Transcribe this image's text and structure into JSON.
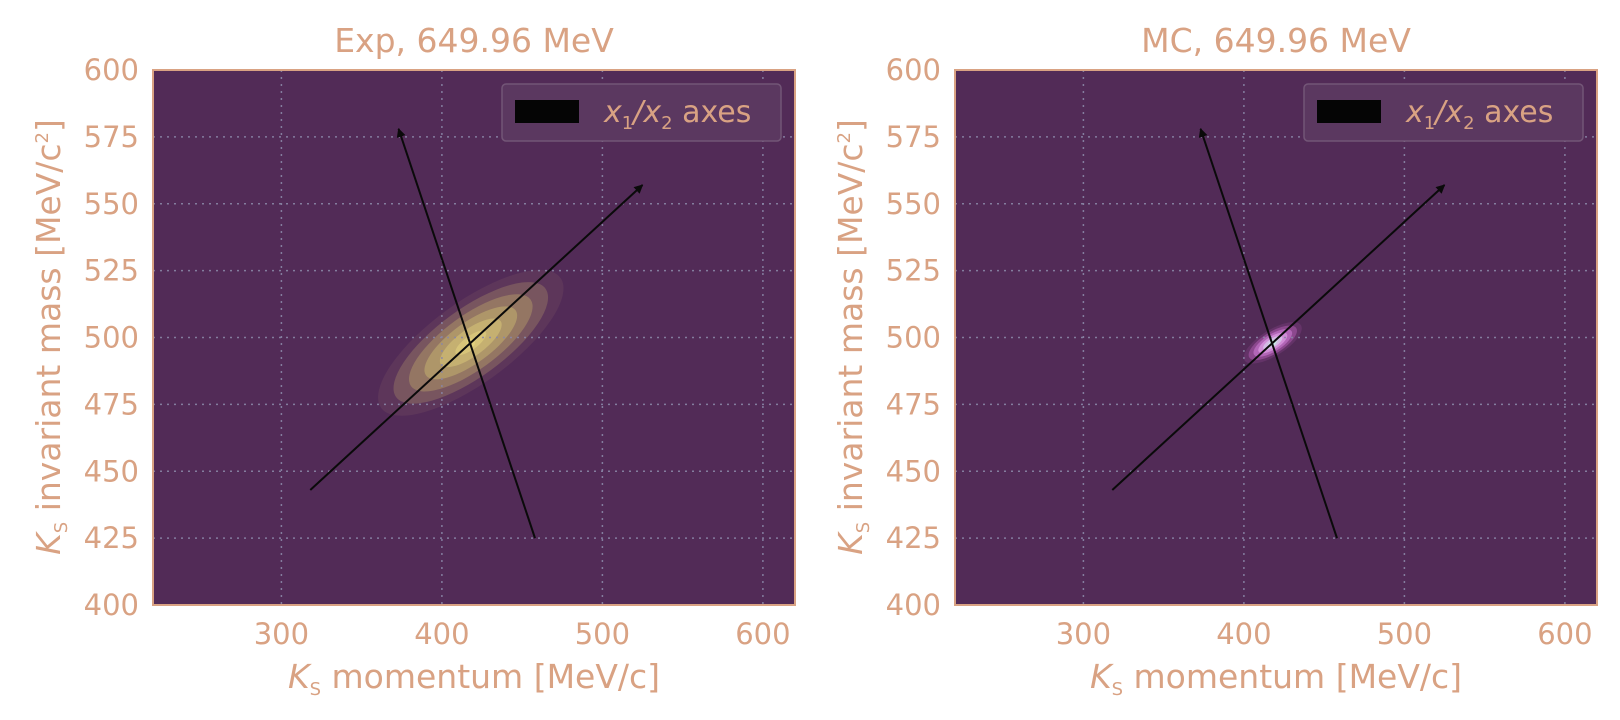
{
  "figure": {
    "text_color": "#D9A283",
    "background_color": "#ffffff",
    "plot_background": "#522B57",
    "grid_color": "#8A86A6",
    "arrow_color": "#0a0a0a"
  },
  "chart_data": [
    {
      "type": "heatmap",
      "title": "Exp, 649.96 MeV",
      "xlabel": {
        "sym": "K",
        "sub": "S",
        "rest": " momentum [MeV/c]"
      },
      "ylabel": {
        "sym": "K",
        "sub": "S",
        "rest": " invariant mass [MeV/c",
        "sup": "2",
        "end": "]"
      },
      "xlim": [
        220,
        620
      ],
      "ylim": [
        400,
        600
      ],
      "xticks": [
        300,
        400,
        500,
        600
      ],
      "yticks": [
        400,
        425,
        450,
        475,
        500,
        525,
        550,
        575,
        600
      ],
      "grid": true,
      "grid_style": "dotted",
      "legend": {
        "position": "top-right",
        "label_prefix": "x",
        "label_sub1": "1",
        "label_mid": "/x",
        "label_sub2": "2",
        "label_suffix": " axes"
      },
      "density": {
        "colormap": "yellow",
        "center": [
          418,
          498
        ],
        "spread_major": 60,
        "spread_minor": 22,
        "angle_deg": 36,
        "peak": "#E3D27E"
      },
      "arrows": [
        {
          "from": [
            318,
            443
          ],
          "to": [
            525,
            557
          ]
        },
        {
          "from": [
            458,
            425
          ],
          "to": [
            373,
            578
          ]
        }
      ]
    },
    {
      "type": "heatmap",
      "title": "MC, 649.96 MeV",
      "xlabel": {
        "sym": "K",
        "sub": "S",
        "rest": " momentum [MeV/c]"
      },
      "ylabel": {
        "sym": "K",
        "sub": "S",
        "rest": " invariant mass [MeV/c",
        "sup": "2",
        "end": "]"
      },
      "xlim": [
        220,
        620
      ],
      "ylim": [
        400,
        600
      ],
      "xticks": [
        300,
        400,
        500,
        600
      ],
      "yticks": [
        400,
        425,
        450,
        475,
        500,
        525,
        550,
        575,
        600
      ],
      "grid": true,
      "grid_style": "dotted",
      "legend": {
        "position": "top-right",
        "label_prefix": "x",
        "label_sub1": "1",
        "label_mid": "/x",
        "label_sub2": "2",
        "label_suffix": " axes"
      },
      "density": {
        "colormap": "magenta",
        "center": [
          418,
          498
        ],
        "spread_major": 18,
        "spread_minor": 7,
        "angle_deg": 32,
        "peak": "#C7F0E6"
      },
      "arrows": [
        {
          "from": [
            318,
            443
          ],
          "to": [
            525,
            557
          ]
        },
        {
          "from": [
            458,
            425
          ],
          "to": [
            373,
            578
          ]
        }
      ]
    }
  ]
}
